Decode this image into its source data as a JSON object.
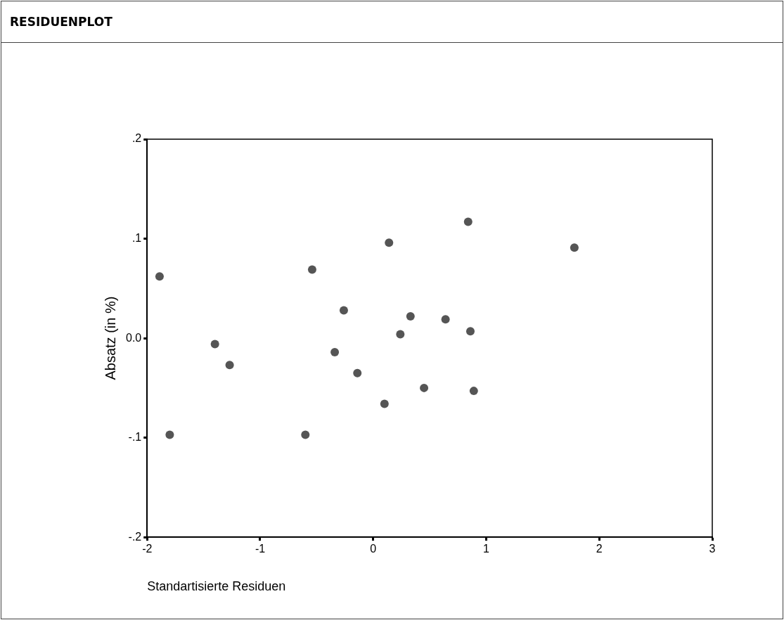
{
  "chart_data": {
    "type": "scatter",
    "title": "RESIDUENPLOT",
    "xlabel": "Standartisierte Residuen",
    "ylabel": "Absatz (in %)",
    "x": [
      -1.89,
      -0.54,
      0.14,
      0.84,
      1.78,
      -0.26,
      0.33,
      0.64,
      0.24,
      0.86,
      -1.4,
      -1.27,
      -0.34,
      -0.14,
      0.45,
      0.89,
      0.1,
      -1.8,
      -0.6
    ],
    "series": [
      {
        "color": "#555555",
        "values": [
          0.062,
          0.069,
          0.096,
          0.117,
          0.091,
          0.028,
          0.022,
          0.019,
          0.004,
          0.007,
          -0.006,
          -0.027,
          -0.014,
          -0.035,
          -0.05,
          -0.053,
          -0.066,
          -0.097,
          -0.097
        ]
      }
    ],
    "xlim": [
      -2,
      3
    ],
    "xticks": [
      -2,
      -1,
      0,
      1,
      2,
      3
    ],
    "ylim": [
      -0.2,
      0.2
    ],
    "yticks": [
      {
        "value": -0.2,
        "label": "-.2"
      },
      {
        "value": -0.1,
        "label": "-.1"
      },
      {
        "value": 0,
        "label": "0.0"
      },
      {
        "value": 0.1,
        "label": ".1"
      },
      {
        "value": 0.2,
        "label": ".2"
      }
    ],
    "marker": "circle",
    "grid": false,
    "legend": false
  }
}
